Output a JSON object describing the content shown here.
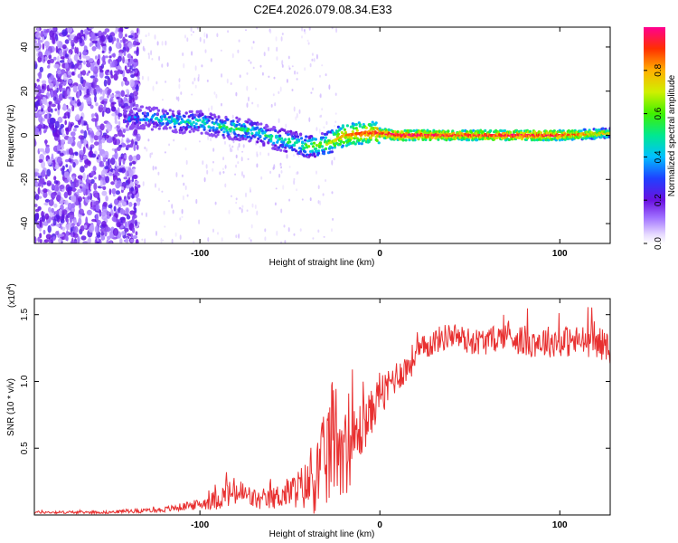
{
  "title": "C2E4.2026.079.08.34.E33",
  "chart_data": [
    {
      "type": "heatmap",
      "xlabel": "Height of straight line (km)",
      "ylabel": "Frequency (Hz)",
      "xlim": [
        -192,
        128
      ],
      "ylim": [
        -49,
        49
      ],
      "xticks": [
        -100,
        0,
        100
      ],
      "yticks": [
        -40,
        -20,
        0,
        20,
        40
      ],
      "xtick_labels": [
        "-100",
        "0",
        "100"
      ],
      "ytick_labels": [
        "-40",
        "-20",
        "0",
        "20",
        "40"
      ],
      "colorbar": {
        "label": "Normalized spectral amplitude",
        "range": [
          0,
          1
        ],
        "ticks": [
          0.0,
          0.2,
          0.4,
          0.6,
          0.8
        ],
        "tick_labels": [
          "0.0",
          "0.2",
          "0.4",
          "0.6",
          "0.8"
        ]
      },
      "ridge": {
        "x": [
          -142,
          -130,
          -120,
          -110,
          -100,
          -90,
          -80,
          -70,
          -60,
          -50,
          -40,
          -30,
          -20,
          -10,
          0,
          10,
          20,
          40,
          60,
          80,
          100,
          128
        ],
        "frequency": [
          8,
          8,
          7,
          6,
          6,
          4,
          3,
          2,
          -1,
          -3,
          -5,
          -4,
          0,
          1,
          1,
          0,
          0,
          0,
          0,
          0,
          0,
          1
        ],
        "amplitude": [
          0.35,
          0.4,
          0.45,
          0.45,
          0.5,
          0.5,
          0.55,
          0.5,
          0.5,
          0.55,
          0.6,
          0.65,
          0.8,
          0.85,
          0.9,
          0.95,
          0.95,
          0.9,
          0.9,
          0.95,
          0.9,
          0.7
        ]
      },
      "grid": false
    },
    {
      "type": "line",
      "xlabel": "Height of straight line (km)",
      "ylabel": "SNR (10 * v/v)",
      "y_multiplier": "(x10",
      "y_multiplier_exp": "4",
      "y_multiplier_close": ")",
      "xlim": [
        -192,
        128
      ],
      "ylim": [
        0,
        1.62
      ],
      "xticks": [
        -100,
        0,
        100
      ],
      "yticks": [
        0.5,
        1.0,
        1.5
      ],
      "xtick_labels": [
        "-100",
        "0",
        "100"
      ],
      "ytick_labels": [
        "0.5",
        "1.0",
        "1.5"
      ],
      "color": "#e83030",
      "series": [
        {
          "x": [
            -192,
            -170,
            -150,
            -140,
            -130,
            -120,
            -110,
            -100,
            -95,
            -90,
            -85,
            -80,
            -75,
            -70,
            -65,
            -60,
            -55,
            -50,
            -45,
            -40,
            -35,
            -32,
            -28,
            -25,
            -22,
            -20,
            -18,
            -15,
            -12,
            -10,
            -8,
            -5,
            -2,
            0,
            3,
            6,
            10,
            15,
            20,
            25,
            30,
            40,
            50,
            60,
            70,
            80,
            90,
            100,
            110,
            120,
            128
          ],
          "values": [
            0.02,
            0.02,
            0.02,
            0.03,
            0.03,
            0.04,
            0.06,
            0.08,
            0.1,
            0.12,
            0.15,
            0.17,
            0.15,
            0.12,
            0.1,
            0.12,
            0.15,
            0.17,
            0.2,
            0.22,
            0.3,
            0.35,
            0.5,
            0.6,
            0.55,
            0.5,
            0.45,
            0.55,
            0.6,
            0.65,
            0.7,
            0.75,
            0.85,
            0.95,
            0.9,
            1.0,
            1.05,
            1.1,
            1.2,
            1.25,
            1.3,
            1.35,
            1.3,
            1.3,
            1.35,
            1.3,
            1.3,
            1.3,
            1.3,
            1.3,
            1.25
          ],
          "noise": [
            0.01,
            0.01,
            0.01,
            0.015,
            0.015,
            0.02,
            0.03,
            0.04,
            0.06,
            0.08,
            0.1,
            0.12,
            0.1,
            0.08,
            0.07,
            0.08,
            0.1,
            0.12,
            0.15,
            0.2,
            0.3,
            0.35,
            0.45,
            0.45,
            0.4,
            0.35,
            0.3,
            0.25,
            0.25,
            0.22,
            0.2,
            0.18,
            0.15,
            0.15,
            0.15,
            0.15,
            0.12,
            0.12,
            0.12,
            0.1,
            0.1,
            0.1,
            0.1,
            0.1,
            0.1,
            0.12,
            0.12,
            0.12,
            0.12,
            0.12,
            0.12
          ]
        }
      ]
    }
  ]
}
